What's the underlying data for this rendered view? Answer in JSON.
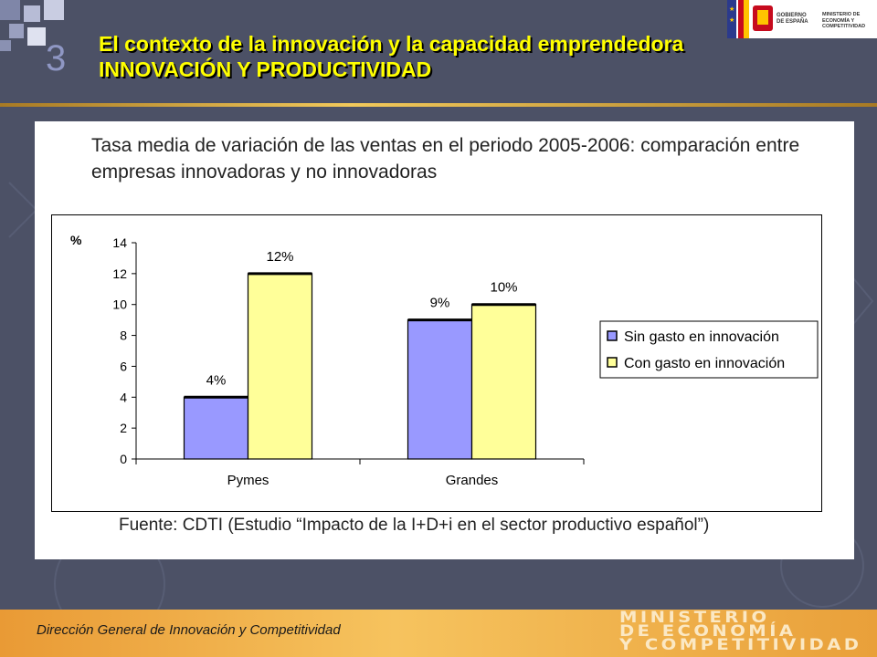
{
  "slide": {
    "number": "3",
    "title_line1": "El contexto de la innovación y la capacidad emprendedora",
    "title_line2": "INNOVACIÓN Y PRODUCTIVIDAD"
  },
  "gov_logo": {
    "text1": "GOBIERNO DE ESPAÑA",
    "text2": "MINISTERIO DE ECONOMÍA Y COMPETITIVIDAD"
  },
  "colors": {
    "background": "#4c5166",
    "title": "#ffff00",
    "series_sin": "#9999ff",
    "series_con": "#ffff99",
    "footer": "#f0b04a"
  },
  "chart_data": {
    "type": "bar",
    "title": "Tasa media de variación de las ventas en el periodo 2005-2006: comparación entre empresas innovadoras y no innovadoras",
    "categories": [
      "Pymes",
      "Grandes"
    ],
    "series": [
      {
        "name": "Sin gasto en innovación",
        "values": [
          4,
          9
        ],
        "labels": [
          "4%",
          "9%"
        ],
        "color": "#9999ff"
      },
      {
        "name": "Con gasto en innovación",
        "values": [
          12,
          10
        ],
        "labels": [
          "12%",
          "10%"
        ],
        "color": "#ffff99"
      }
    ],
    "ylabel": "%",
    "ylim": [
      0,
      14
    ],
    "yticks": [
      "0",
      "2",
      "4",
      "6",
      "8",
      "10",
      "12",
      "14"
    ],
    "grid": false,
    "legend_position": "right",
    "source": "Fuente: CDTI (Estudio “Impacto de la I+D+i en el sector productivo español”)"
  },
  "footer": {
    "text": "Dirección General de Innovación y Competitividad",
    "ministry": [
      "MINISTERIO",
      "DE ECONOMÍA",
      "Y COMPETITIVIDAD"
    ]
  }
}
